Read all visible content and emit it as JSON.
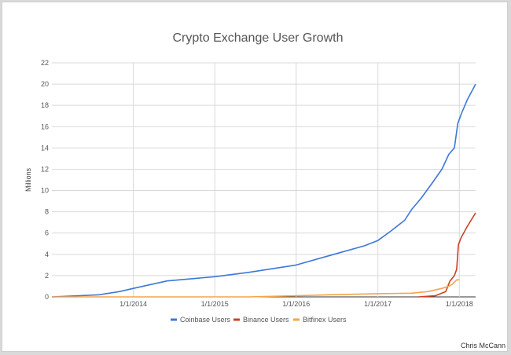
{
  "chart_data": {
    "type": "line",
    "title": "Crypto Exchange User Growth",
    "xlabel": "",
    "ylabel": "Millions",
    "credit": "Chris McCann",
    "ylim": [
      0,
      22
    ],
    "yticks": [
      0,
      2,
      4,
      6,
      8,
      10,
      12,
      14,
      16,
      18,
      20,
      22
    ],
    "xlim": [
      "2013-01-01",
      "2018-03-15"
    ],
    "xticks": [
      {
        "date": "2014-01-01",
        "label": "1/1/2014"
      },
      {
        "date": "2015-01-01",
        "label": "1/1/2015"
      },
      {
        "date": "2016-01-01",
        "label": "1/1/2016"
      },
      {
        "date": "2017-01-01",
        "label": "1/1/2017"
      },
      {
        "date": "2018-01-01",
        "label": "1/1/2018"
      }
    ],
    "grid": true,
    "legend_position": "bottom",
    "series": [
      {
        "name": "Coinbase Users",
        "color": "#3c78d8",
        "points": [
          [
            "2013-01-01",
            0
          ],
          [
            "2013-05-01",
            0.1
          ],
          [
            "2013-08-01",
            0.2
          ],
          [
            "2013-11-01",
            0.5
          ],
          [
            "2014-01-01",
            0.8
          ],
          [
            "2014-06-01",
            1.5
          ],
          [
            "2015-01-01",
            1.9
          ],
          [
            "2015-06-01",
            2.3
          ],
          [
            "2016-01-01",
            3.0
          ],
          [
            "2016-06-01",
            3.9
          ],
          [
            "2016-11-01",
            4.8
          ],
          [
            "2017-01-01",
            5.3
          ],
          [
            "2017-03-01",
            6.2
          ],
          [
            "2017-05-01",
            7.2
          ],
          [
            "2017-06-01",
            8.2
          ],
          [
            "2017-07-15",
            9.3
          ],
          [
            "2017-09-01",
            10.7
          ],
          [
            "2017-10-15",
            12.0
          ],
          [
            "2017-11-15",
            13.4
          ],
          [
            "2017-12-10",
            14.0
          ],
          [
            "2017-12-25",
            16.3
          ],
          [
            "2018-01-10",
            17.2
          ],
          [
            "2018-02-05",
            18.5
          ],
          [
            "2018-03-15",
            20.0
          ]
        ]
      },
      {
        "name": "Binance Users",
        "color": "#cc4125",
        "points": [
          [
            "2017-07-01",
            0
          ],
          [
            "2017-09-15",
            0.1
          ],
          [
            "2017-11-01",
            0.5
          ],
          [
            "2017-11-20",
            1.5
          ],
          [
            "2017-12-10",
            2.0
          ],
          [
            "2017-12-20",
            2.6
          ],
          [
            "2017-12-28",
            4.9
          ],
          [
            "2018-01-10",
            5.6
          ],
          [
            "2018-02-05",
            6.6
          ],
          [
            "2018-03-15",
            7.9
          ]
        ]
      },
      {
        "name": "Bitfinex Users",
        "color": "#f6a34a",
        "points": [
          [
            "2013-01-01",
            0
          ],
          [
            "2015-06-01",
            0
          ],
          [
            "2016-01-01",
            0.1
          ],
          [
            "2016-06-01",
            0.2
          ],
          [
            "2017-01-01",
            0.3
          ],
          [
            "2017-06-01",
            0.35
          ],
          [
            "2017-08-15",
            0.5
          ],
          [
            "2017-10-15",
            0.8
          ],
          [
            "2017-11-15",
            1.0
          ],
          [
            "2017-12-01",
            1.2
          ],
          [
            "2017-12-20",
            1.6
          ],
          [
            "2018-01-01",
            1.6
          ]
        ]
      }
    ]
  }
}
